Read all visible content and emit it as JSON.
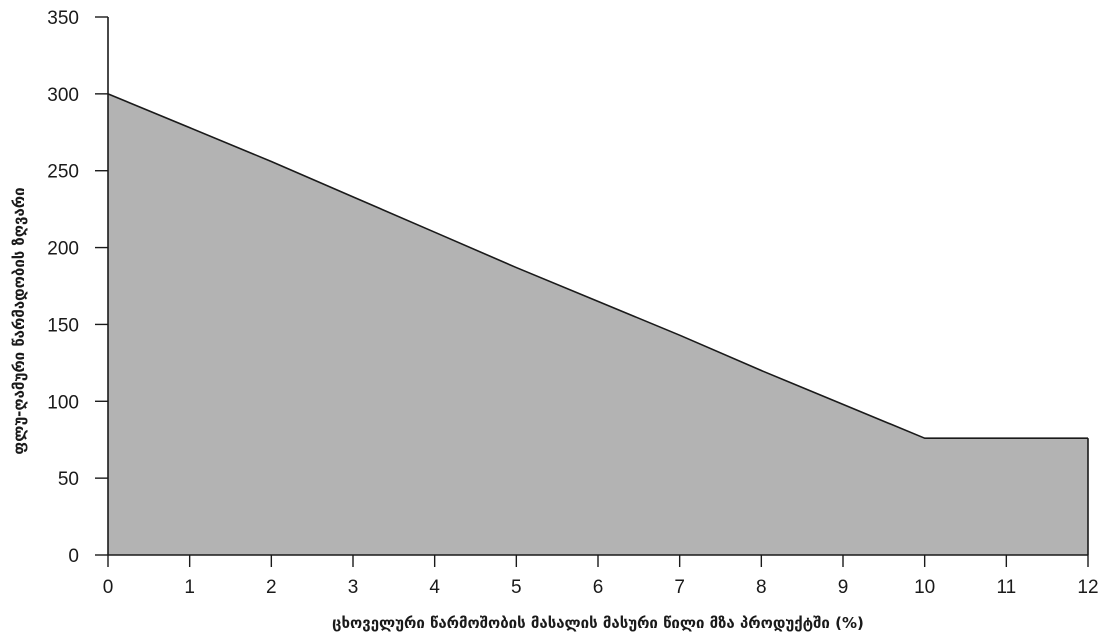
{
  "chart_data": {
    "type": "area",
    "title": "",
    "xlabel": "ცხოველური წარმოშობის მასალის მასური წილი მზა პროდუქტში (%)",
    "ylabel": "ფლუ-ღამური წარმადობის ზღვარი",
    "xlim": [
      0,
      12
    ],
    "ylim": [
      0,
      350
    ],
    "x_ticks": [
      0,
      1,
      2,
      3,
      4,
      5,
      6,
      7,
      8,
      9,
      10,
      11,
      12
    ],
    "y_ticks": [
      0,
      50,
      100,
      150,
      200,
      250,
      300,
      350
    ],
    "grid": false,
    "series": [
      {
        "x": [
          0,
          1,
          2,
          3,
          4,
          5,
          6,
          7,
          8,
          9,
          10,
          11,
          12
        ],
        "y": [
          300,
          278,
          256,
          233,
          210,
          187,
          165,
          143,
          120,
          98,
          76,
          76,
          76
        ]
      }
    ],
    "colors": {
      "fill": "#b3b3b3",
      "line": "#1a1a1a",
      "axis": "#1a1a1a"
    }
  }
}
